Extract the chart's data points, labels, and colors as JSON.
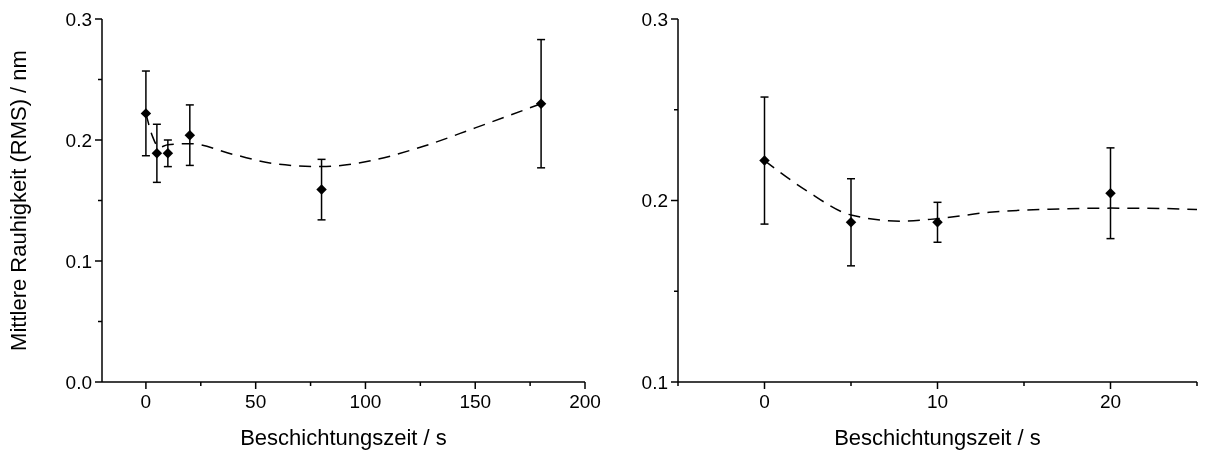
{
  "chart_data": [
    {
      "type": "scatter",
      "xlabel": "Beschichtungszeit / s",
      "ylabel": "Mittlere Rauhigkeit (RMS) / nm",
      "xlim": [
        -20,
        200
      ],
      "xticks": [
        0,
        {
          "value": 25,
          "label": null
        },
        50,
        {
          "value": 75,
          "label": null
        },
        100,
        {
          "value": 125,
          "label": null
        },
        150,
        {
          "value": 175,
          "label": null
        },
        200
      ],
      "ylim": [
        0,
        0.3
      ],
      "yticks": [
        {
          "value": 0,
          "label": "0.0"
        },
        {
          "value": 0.05,
          "label": null
        },
        0.1,
        {
          "value": 0.15,
          "label": null
        },
        0.2,
        {
          "value": 0.25,
          "label": null
        },
        0.3
      ],
      "grid": false,
      "series": [
        {
          "marker": "diamond",
          "color": "#000000",
          "x": [
            0,
            5,
            10,
            20,
            80,
            180
          ],
          "values": [
            0.222,
            0.189,
            0.189,
            0.204,
            0.159,
            0.23
          ],
          "errors": [
            0.035,
            0.024,
            0.011,
            0.025,
            0.025,
            0.053
          ]
        },
        {
          "type": "line",
          "color": "#000000",
          "line_style": "dashed",
          "x": [
            0,
            3,
            6,
            10,
            20,
            40,
            60,
            80,
            100,
            125,
            150,
            180
          ],
          "values": [
            0.222,
            0.203,
            0.194,
            0.196,
            0.197,
            0.188,
            0.18,
            0.178,
            0.182,
            0.194,
            0.21,
            0.23
          ]
        }
      ]
    },
    {
      "type": "scatter",
      "xlabel": "Beschichtungszeit / s",
      "xlim": [
        -5,
        25
      ],
      "xticks": [
        {
          "value": -5,
          "label": null
        },
        0,
        {
          "value": 5,
          "label": null
        },
        10,
        {
          "value": 15,
          "label": null
        },
        20,
        {
          "value": 25,
          "label": null
        }
      ],
      "ylim": [
        0.1,
        0.3
      ],
      "yticks": [
        0.1,
        {
          "value": 0.15,
          "label": null
        },
        0.2,
        {
          "value": 0.25,
          "label": null
        },
        0.3
      ],
      "grid": false,
      "series": [
        {
          "marker": "diamond",
          "color": "#000000",
          "x": [
            0,
            5,
            10,
            20
          ],
          "values": [
            0.222,
            0.188,
            0.188,
            0.204
          ],
          "errors": [
            0.035,
            0.024,
            0.011,
            0.025
          ]
        },
        {
          "type": "line",
          "color": "#000000",
          "line_style": "dashed",
          "x": [
            0,
            2.5,
            5,
            8,
            10,
            13,
            16.5,
            20,
            23,
            25
          ],
          "values": [
            0.222,
            0.205,
            0.192,
            0.1886,
            0.19,
            0.1935,
            0.1952,
            0.1958,
            0.1956,
            0.195
          ]
        }
      ]
    }
  ]
}
